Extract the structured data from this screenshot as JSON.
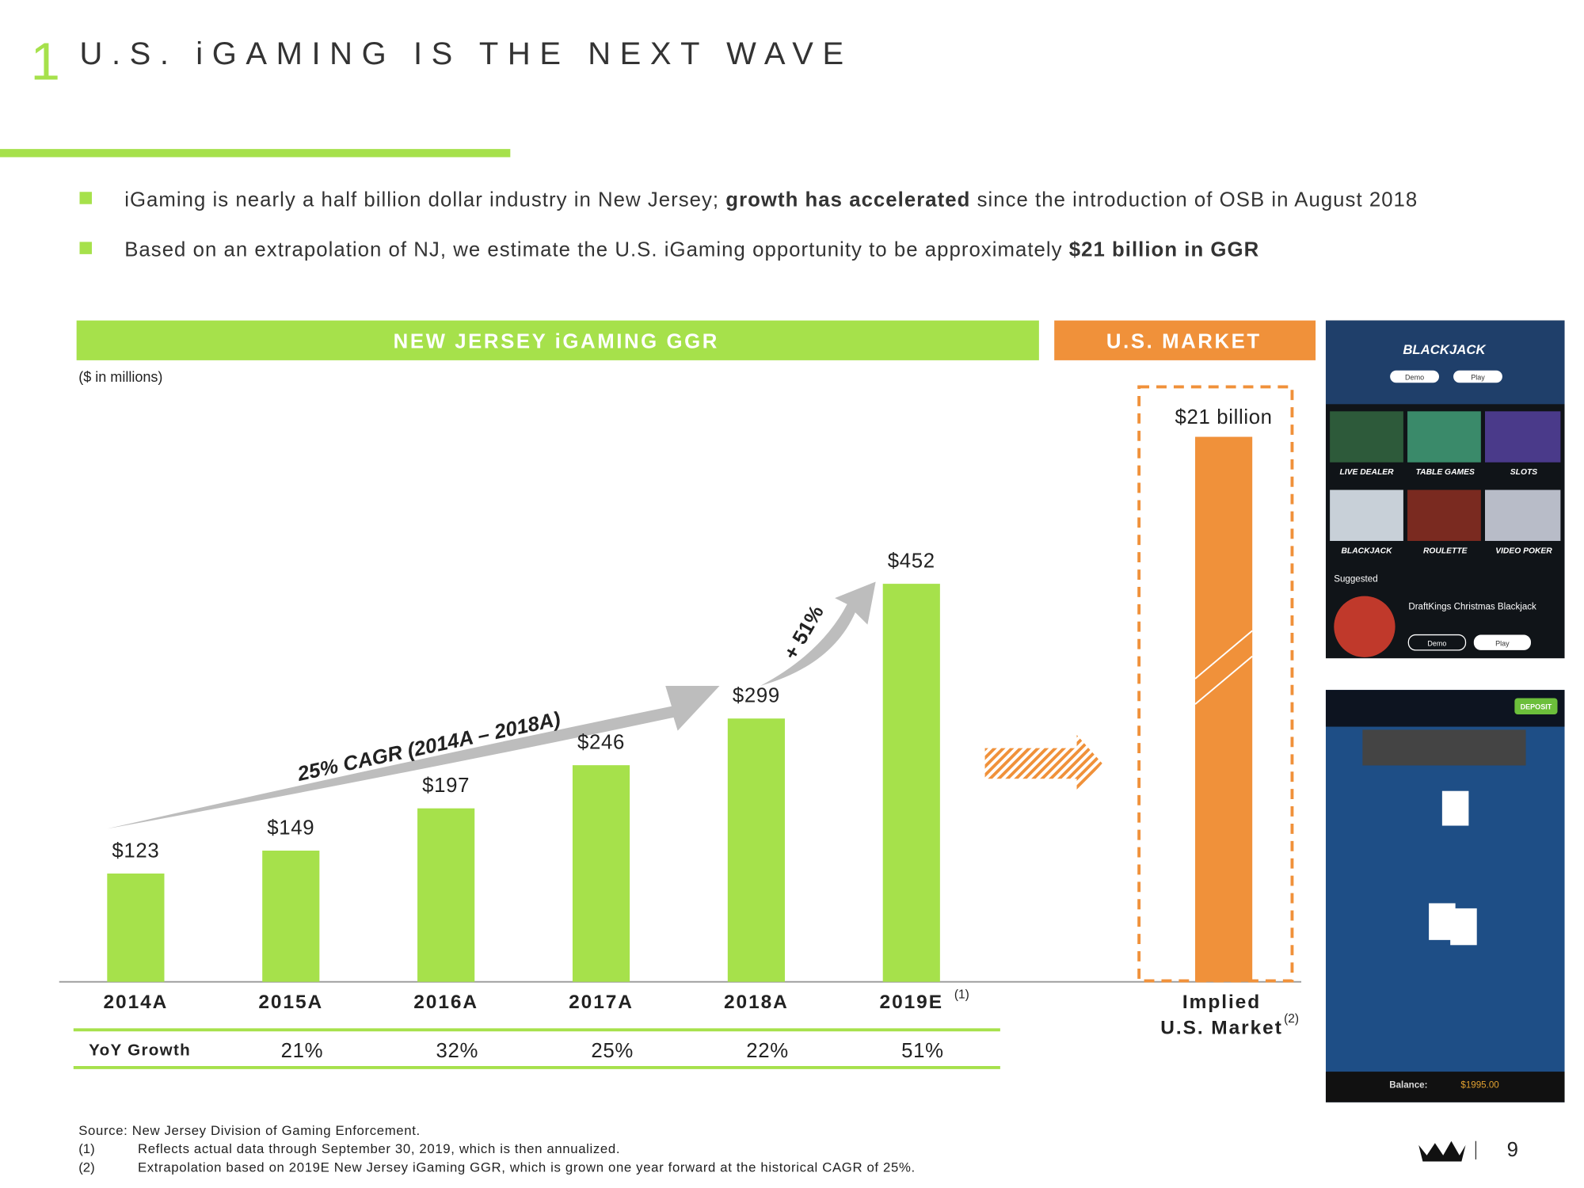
{
  "header": {
    "number": "1",
    "title": "U.S. iGAMING IS THE NEXT WAVE"
  },
  "bullets": [
    [
      {
        "text": "iGaming is nearly a half billion dollar industry in New Jersey; ",
        "bold": false
      },
      {
        "text": "growth has accelerated",
        "bold": true
      },
      {
        "text": " since the introduction of OSB in August 2018",
        "bold": false
      }
    ],
    [
      {
        "text": "Based on an extrapolation of NJ, we estimate the U.S. iGaming opportunity to be approximately ",
        "bold": false
      },
      {
        "text": "$21 billion in GGR",
        "bold": true
      }
    ]
  ],
  "chart_data": {
    "type": "bar",
    "title": "NEW JERSEY iGAMING GGR",
    "subtitle": "($ in millions)",
    "categories": [
      "2014A",
      "2015A",
      "2016A",
      "2017A",
      "2018A",
      "2019E"
    ],
    "values": [
      123,
      149,
      197,
      246,
      299,
      452
    ],
    "value_labels": [
      "$123",
      "$149",
      "$197",
      "$246",
      "$299",
      "$452"
    ],
    "color": "#a6e14b",
    "category_notes": [
      null,
      null,
      null,
      null,
      null,
      "(1)"
    ],
    "annotations": {
      "cagr": "25% CAGR (2014A – 2018A)",
      "growth": "+ 51%"
    }
  },
  "yoy": {
    "label": "YoY Growth",
    "values": [
      "21%",
      "32%",
      "25%",
      "22%",
      "51%"
    ]
  },
  "us_market": {
    "title": "U.S. MARKET",
    "value": 21,
    "value_label": "$21 billion",
    "category": [
      "Implied",
      "U.S. Market"
    ],
    "note": "(2)",
    "color": "#f0913a"
  },
  "screenshots": {
    "top": {
      "title": "BLACKJACK",
      "tiles": [
        "LIVE DEALER",
        "TABLE GAMES",
        "SLOTS",
        "BLACKJACK",
        "ROULETTE",
        "VIDEO POKER"
      ],
      "suggested": "Suggested",
      "game": "DraftKings Christmas Blackjack",
      "demo": "Demo",
      "play": "Play"
    },
    "bottom": {
      "deposit": "DEPOSIT",
      "balance": "Balance:",
      "amount": "$1995.00"
    }
  },
  "footnotes": {
    "source": "Source: New Jersey Division of Gaming Enforcement.",
    "notes": [
      {
        "marker": "(1)",
        "text": "Reflects actual data through September 30, 2019, which is then annualized."
      },
      {
        "marker": "(2)",
        "text": "Extrapolation based on 2019E New Jersey iGaming GGR, which is grown one year forward at the historical CAGR of 25%."
      }
    ]
  },
  "page_number": "9"
}
